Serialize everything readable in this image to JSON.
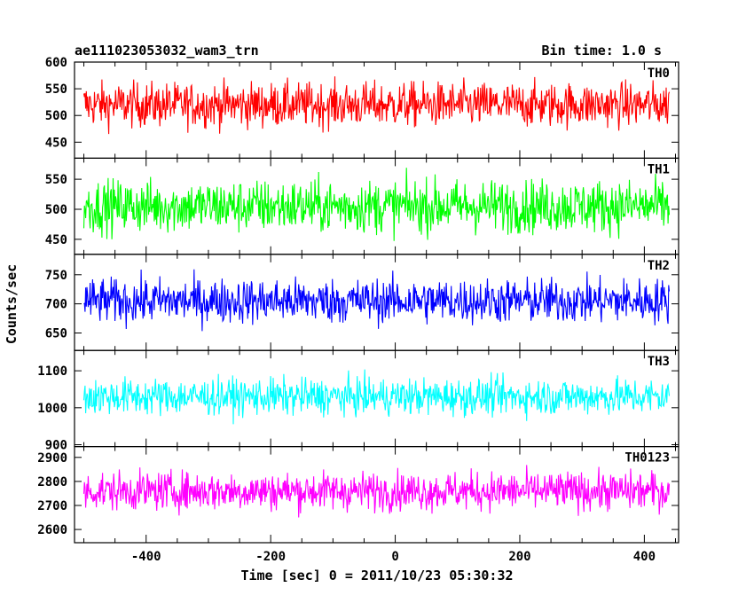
{
  "header": {
    "title": "ae111023053032_wam3_trn",
    "bin_time": "Bin time: 1.0 s"
  },
  "chart_data": {
    "type": "line",
    "title": "ae111023053032_wam3_trn",
    "xlabel": "Time [sec] 0 = 2011/10/23 05:30:32",
    "ylabel": "Counts/sec",
    "xlim": [
      -515,
      455
    ],
    "x_range_data": [
      -500,
      440
    ],
    "x_ticks": [
      -400,
      -200,
      0,
      200,
      400
    ],
    "grid": false,
    "panels": [
      {
        "name": "TH0",
        "color": "#ff0000",
        "ylim": [
          420,
          600
        ],
        "y_ticks": [
          450,
          500,
          550,
          600
        ],
        "mean": 520,
        "spread": 52,
        "noise_max": 600
      },
      {
        "name": "TH1",
        "color": "#00ff00",
        "ylim": [
          425,
          585
        ],
        "y_ticks": [
          450,
          500,
          550
        ],
        "mean": 505,
        "spread": 55,
        "noise_max": 585
      },
      {
        "name": "TH2",
        "color": "#0000ff",
        "ylim": [
          620,
          785
        ],
        "y_ticks": [
          650,
          700,
          750
        ],
        "mean": 705,
        "spread": 48,
        "noise_max": 785
      },
      {
        "name": "TH3",
        "color": "#00ffff",
        "ylim": [
          895,
          1155
        ],
        "y_ticks": [
          900,
          1000,
          1100
        ],
        "mean": 1030,
        "spread": 62,
        "noise_max": 1155
      },
      {
        "name": "TH0123",
        "color": "#ff00ff",
        "ylim": [
          2545,
          2945
        ],
        "y_ticks": [
          2600,
          2700,
          2800,
          2900
        ],
        "mean": 2760,
        "spread": 100,
        "noise_max": 2945
      }
    ]
  }
}
